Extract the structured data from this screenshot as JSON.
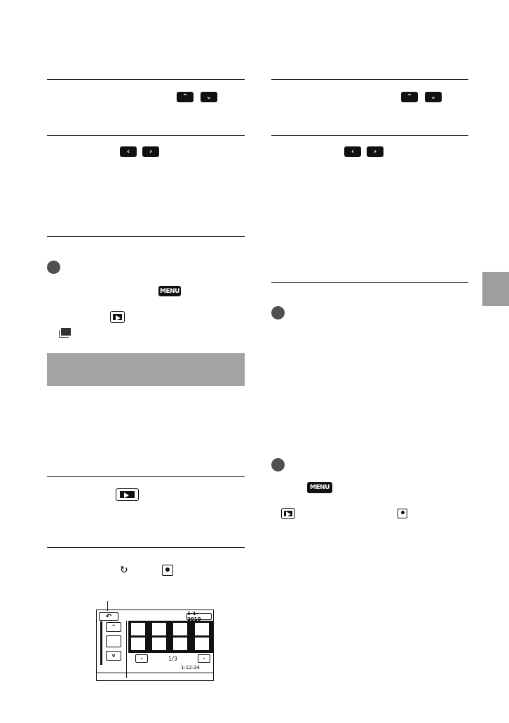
{
  "icons": {
    "up": "chevron-up-icon",
    "down": "chevron-down-icon",
    "left": "chevron-left-icon",
    "right": "chevron-right-icon",
    "menu": "menu-button-icon",
    "play": "playback-icon",
    "film": "film-roll-icon",
    "rotate": "rotate-icon",
    "portrait": "portrait-icon",
    "step": "step-bullet-icon"
  },
  "menu_label": "MENU",
  "lcd": {
    "date": "1-1-2010",
    "page": "1/3",
    "counter": "1:12:34",
    "back": "↶"
  },
  "colors": {
    "section_header": "#a3a3a3",
    "side_tab": "#9e9e9e",
    "bullet": "#4f4f4f"
  }
}
